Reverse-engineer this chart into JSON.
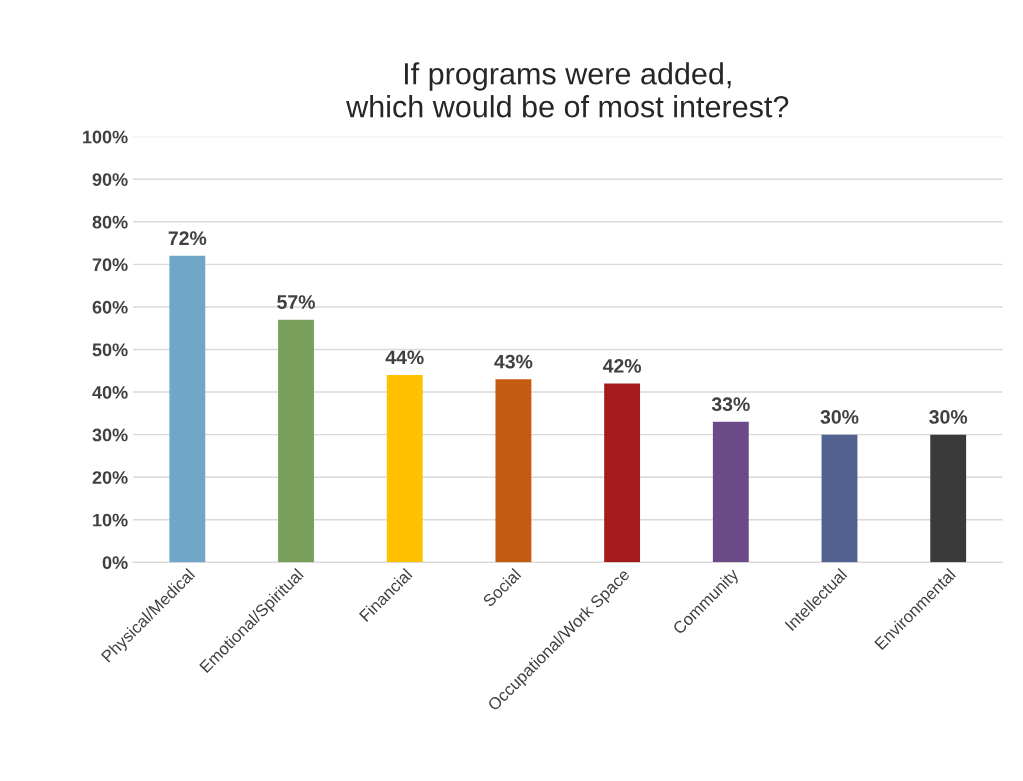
{
  "chart_data": {
    "type": "bar",
    "title": "If programs were added,\nwhich would be of most interest?",
    "categories": [
      "Physical/Medical",
      "Emotional/Spiritual",
      "Financial",
      "Social",
      "Occupational/Work Space",
      "Community",
      "Intellectual",
      "Environmental"
    ],
    "values": [
      72,
      57,
      44,
      43,
      42,
      33,
      30,
      30
    ],
    "colors": [
      "#70a7c8",
      "#78a05a",
      "#ffc000",
      "#c55a11",
      "#a51b1b",
      "#6b4a87",
      "#52618f",
      "#3a3a3a"
    ],
    "value_labels": [
      "72%",
      "57%",
      "44%",
      "43%",
      "42%",
      "33%",
      "30%",
      "30%"
    ],
    "ylim": [
      0,
      100
    ],
    "yticks": [
      {
        "value": 0,
        "label": "0%"
      },
      {
        "value": 10,
        "label": "10%"
      },
      {
        "value": 20,
        "label": "20%"
      },
      {
        "value": 30,
        "label": "30%"
      },
      {
        "value": 40,
        "label": "40%"
      },
      {
        "value": 50,
        "label": "50%"
      },
      {
        "value": 60,
        "label": "60%"
      },
      {
        "value": 70,
        "label": "70%"
      },
      {
        "value": 80,
        "label": "80%"
      },
      {
        "value": 90,
        "label": "90%"
      },
      {
        "value": 100,
        "label": "100%"
      }
    ],
    "grid": "y"
  }
}
